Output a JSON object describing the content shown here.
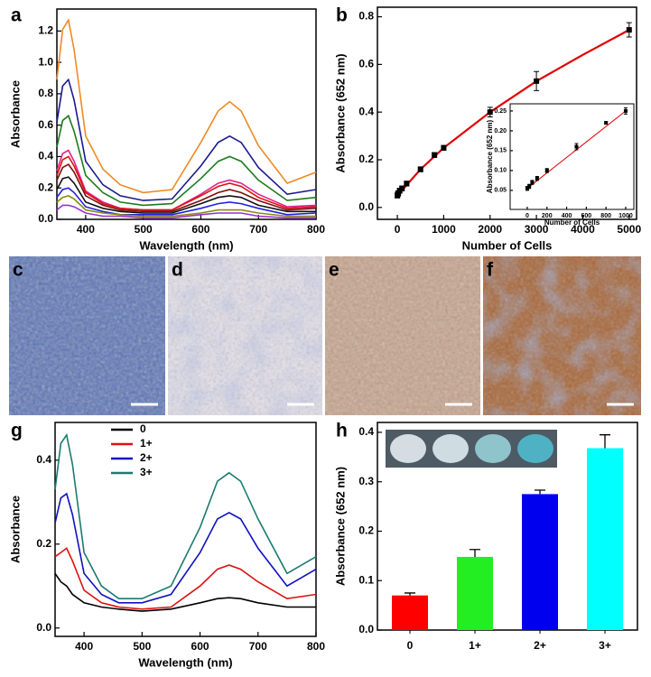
{
  "chart_data": [
    {
      "type": "line",
      "label": "a",
      "x_label": "Wavelength (nm)",
      "y_label": "Absorbance",
      "x": [
        350,
        360,
        370,
        380,
        400,
        430,
        460,
        500,
        550,
        600,
        630,
        650,
        670,
        700,
        750,
        800
      ],
      "series": [
        {
          "color": "#f08a24",
          "values": [
            0.89,
            1.21,
            1.27,
            1.08,
            0.53,
            0.32,
            0.22,
            0.17,
            0.19,
            0.49,
            0.69,
            0.75,
            0.69,
            0.47,
            0.23,
            0.3
          ]
        },
        {
          "color": "#1a1a8c",
          "values": [
            0.62,
            0.85,
            0.89,
            0.76,
            0.37,
            0.22,
            0.15,
            0.12,
            0.13,
            0.34,
            0.49,
            0.53,
            0.49,
            0.33,
            0.16,
            0.19
          ]
        },
        {
          "color": "#1e7a1e",
          "values": [
            0.46,
            0.63,
            0.66,
            0.56,
            0.28,
            0.17,
            0.11,
            0.09,
            0.1,
            0.26,
            0.37,
            0.4,
            0.37,
            0.25,
            0.12,
            0.14
          ]
        },
        {
          "color": "#e0208c",
          "values": [
            0.31,
            0.42,
            0.44,
            0.37,
            0.18,
            0.11,
            0.07,
            0.06,
            0.06,
            0.16,
            0.23,
            0.25,
            0.23,
            0.16,
            0.08,
            0.09
          ]
        },
        {
          "color": "#e01010",
          "values": [
            0.28,
            0.38,
            0.4,
            0.34,
            0.17,
            0.1,
            0.07,
            0.06,
            0.06,
            0.15,
            0.21,
            0.23,
            0.21,
            0.14,
            0.07,
            0.08
          ]
        },
        {
          "color": "#7a1010",
          "values": [
            0.25,
            0.33,
            0.35,
            0.3,
            0.15,
            0.09,
            0.06,
            0.05,
            0.05,
            0.12,
            0.17,
            0.19,
            0.17,
            0.12,
            0.06,
            0.07
          ]
        },
        {
          "color": "#111111",
          "values": [
            0.19,
            0.26,
            0.27,
            0.23,
            0.11,
            0.07,
            0.05,
            0.04,
            0.04,
            0.1,
            0.14,
            0.15,
            0.14,
            0.09,
            0.05,
            0.05
          ]
        },
        {
          "color": "#2020e0",
          "values": [
            0.14,
            0.19,
            0.2,
            0.17,
            0.08,
            0.05,
            0.03,
            0.03,
            0.03,
            0.07,
            0.1,
            0.11,
            0.1,
            0.07,
            0.03,
            0.04
          ]
        },
        {
          "color": "#8a8a10",
          "values": [
            0.11,
            0.14,
            0.15,
            0.13,
            0.06,
            0.04,
            0.03,
            0.02,
            0.02,
            0.04,
            0.06,
            0.06,
            0.06,
            0.04,
            0.02,
            0.02
          ]
        },
        {
          "color": "#9a30d0",
          "values": [
            0.06,
            0.09,
            0.09,
            0.08,
            0.04,
            0.02,
            0.02,
            0.01,
            0.01,
            0.03,
            0.04,
            0.04,
            0.04,
            0.02,
            0.01,
            0.01
          ]
        }
      ],
      "xlim": [
        350,
        800
      ],
      "ylim": [
        0,
        1.34
      ],
      "xticks": [
        400,
        500,
        600,
        700,
        800
      ],
      "yticks": [
        {
          "value": 0,
          "label": "0.0"
        },
        0.2,
        0.4,
        0.6,
        0.8,
        {
          "value": 1,
          "label": "1.0"
        },
        1.2
      ]
    },
    {
      "type": "scatter",
      "label": "b",
      "x_label": "Number of Cells",
      "y_label": "Absorbance (652 nm)",
      "series": [
        {
          "color": "#000000",
          "x": [
            0,
            10,
            20,
            50,
            100,
            200,
            500,
            800,
            1000,
            2000,
            3000,
            5000
          ],
          "values": [
            0.05,
            0.055,
            0.06,
            0.07,
            0.08,
            0.1,
            0.16,
            0.22,
            0.25,
            0.4,
            0.53,
            0.745
          ],
          "errors": [
            0.01,
            0.01,
            0.01,
            0.01,
            0.01,
            0.01,
            0.01,
            0.01,
            0.01,
            0.02,
            0.04,
            0.03
          ]
        }
      ],
      "fit": {
        "color": "#e00000",
        "x": [
          0,
          500,
          1000,
          2000,
          3000,
          4000,
          5000
        ],
        "values": [
          0.05,
          0.16,
          0.25,
          0.4,
          0.53,
          0.64,
          0.745
        ]
      },
      "xlim": [
        -430,
        5160
      ],
      "ylim": [
        -0.05,
        0.84
      ],
      "xticks": [
        0,
        1000,
        2000,
        3000,
        4000,
        5000
      ],
      "yticks": [
        {
          "value": 0,
          "label": "0.0"
        },
        0.2,
        0.4,
        0.6,
        0.8
      ]
    },
    {
      "type": "scatter",
      "x_label": "Number of Cells",
      "y_label": "Absorbance (652 nm)",
      "series": [
        {
          "color": "#000000",
          "x": [
            0,
            20,
            50,
            100,
            200,
            500,
            800,
            1000
          ],
          "values": [
            0.055,
            0.06,
            0.07,
            0.08,
            0.1,
            0.16,
            0.22,
            0.25
          ],
          "errors": [
            0.005,
            0.005,
            0.005,
            0.005,
            0.005,
            0.008,
            0.003,
            0.008
          ]
        }
      ],
      "fit": {
        "color": "#e00000",
        "x": [
          0,
          1000
        ],
        "values": [
          0.055,
          0.25
        ]
      },
      "xlim": [
        -174,
        1083
      ],
      "ylim": [
        0.002,
        0.268
      ],
      "xticks": [
        0,
        200,
        400,
        600,
        800,
        1000
      ],
      "yticks": [
        {
          "value": 0.05,
          "label": "0.05"
        },
        {
          "value": 0.1,
          "label": "0.10"
        },
        {
          "value": 0.15,
          "label": "0.15"
        },
        {
          "value": 0.2,
          "label": "0.20"
        },
        {
          "value": 0.25,
          "label": "0.25"
        }
      ]
    },
    {
      "type": "line",
      "label": "g",
      "x_label": "Wavelength (nm)",
      "y_label": "Absorbance",
      "legend": "upper left",
      "x": [
        350,
        360,
        370,
        380,
        400,
        430,
        460,
        500,
        550,
        600,
        630,
        650,
        670,
        700,
        750,
        800
      ],
      "series": [
        {
          "name": "0",
          "color": "#000000",
          "values": [
            0.13,
            0.11,
            0.1,
            0.08,
            0.06,
            0.05,
            0.045,
            0.04,
            0.045,
            0.06,
            0.07,
            0.072,
            0.07,
            0.06,
            0.05,
            0.05
          ]
        },
        {
          "name": "1+",
          "color": "#e01010",
          "values": [
            0.17,
            0.18,
            0.19,
            0.16,
            0.09,
            0.06,
            0.05,
            0.045,
            0.05,
            0.1,
            0.14,
            0.15,
            0.14,
            0.11,
            0.07,
            0.08
          ]
        },
        {
          "name": "2+",
          "color": "#1010c0",
          "values": [
            0.25,
            0.31,
            0.32,
            0.27,
            0.13,
            0.08,
            0.06,
            0.06,
            0.08,
            0.18,
            0.26,
            0.275,
            0.26,
            0.19,
            0.1,
            0.14
          ]
        },
        {
          "name": "3+",
          "color": "#1a7a70",
          "values": [
            0.33,
            0.44,
            0.46,
            0.39,
            0.18,
            0.1,
            0.07,
            0.07,
            0.1,
            0.24,
            0.35,
            0.37,
            0.35,
            0.26,
            0.13,
            0.17
          ]
        }
      ],
      "xlim": [
        350,
        800
      ],
      "ylim": [
        -0.02,
        0.49
      ],
      "xticks": [
        400,
        500,
        600,
        700,
        800
      ],
      "yticks": [
        {
          "value": 0,
          "label": "0.0"
        },
        0.2,
        0.4
      ]
    },
    {
      "type": "bar",
      "label": "h",
      "y_label": "Absorbance (652 nm)",
      "categories": [
        "0",
        "1+",
        "2+",
        "3+"
      ],
      "values": [
        0.07,
        0.148,
        0.275,
        0.368
      ],
      "errors": [
        0.005,
        0.015,
        0.008,
        0.027
      ],
      "colors": [
        "#ff0000",
        "#22ee22",
        "#0000ee",
        "#00ffff"
      ],
      "ylim": [
        0,
        0.42
      ],
      "yticks": [
        {
          "value": 0,
          "label": "0.0"
        },
        0.1,
        0.2,
        0.3,
        0.4
      ]
    }
  ],
  "images": [
    {
      "label": "c"
    },
    {
      "label": "d"
    },
    {
      "label": "e"
    },
    {
      "label": "f"
    }
  ]
}
